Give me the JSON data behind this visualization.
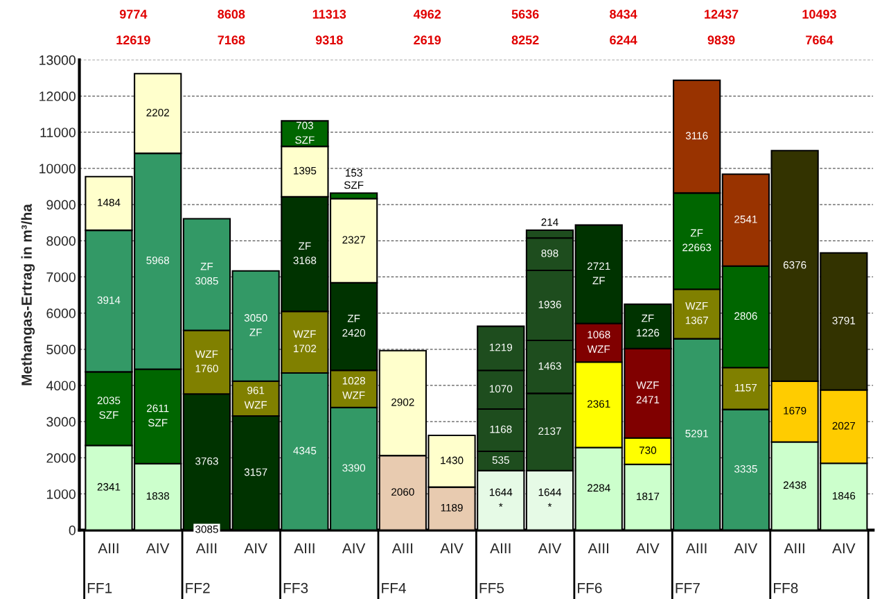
{
  "chart_data": {
    "type": "bar",
    "stacked": true,
    "ylabel": "Methangas-Ertrag in m³/ha",
    "categories": [
      "AIII\nFF1",
      "AIV",
      "AIII\nFF2",
      "AIV",
      "AIII\nFF3",
      "AIV",
      "AIII\nFF4",
      "AIV",
      "AIII\nFF5",
      "AIV",
      "AIII\nFF6",
      "AIV",
      "AIII\nFF7",
      "AIV",
      "AIII\nFF8",
      "AIV"
    ],
    "series": [
      {
        "values": [
          2341,
          1838,
          3763,
          3157,
          4345,
          3390,
          2060,
          1189,
          1644,
          1644,
          2284,
          1817,
          5291,
          3335,
          2438,
          1846
        ],
        "colors": [
          "#ccffcc",
          "#ccffcc",
          "#003300",
          "#003300",
          "#339966",
          "#339966",
          "#e8cbb0",
          "#e8cbb0",
          "#e6fae6",
          "#e6fae6",
          "#ccffcc",
          "#ccffcc",
          "#339966",
          "#339966",
          "#ccffcc",
          "#ccffcc"
        ],
        "value_labels": [
          "2341",
          "1838",
          "3763",
          "3157",
          "4345",
          "3390",
          "2060",
          "1189",
          "1644\n*",
          "1644\n*",
          "2284",
          "1817",
          "5291",
          "3335",
          "2438",
          "1846"
        ]
      },
      {
        "values": [
          2035,
          2611,
          1760,
          961,
          1702,
          1028,
          2902,
          1430,
          535,
          2137,
          2361,
          730,
          1367,
          1157,
          1679,
          2027
        ],
        "colors": [
          "#006600",
          "#006600",
          "#808000",
          "#808000",
          "#808000",
          "#808000",
          "#ffffcc",
          "#ffffcc",
          "#1e4d1e",
          "#1e4d1e",
          "#ffff00",
          "#ffff00",
          "#808000",
          "#808000",
          "#ffcc00",
          "#ffcc00"
        ],
        "value_labels": [
          "2035\nSZF",
          "2611\nSZF",
          "WZF\n1760",
          "961\nWZF",
          "WZF\n1702",
          "1028\nWZF",
          "2902",
          "1430",
          "535",
          "2137",
          "2361",
          "730",
          "WZF\n1367",
          "1157",
          "1679",
          "2027"
        ]
      },
      {
        "values": [
          3914,
          5968,
          3085,
          3050,
          3168,
          2420,
          null,
          null,
          1168,
          1463,
          1068,
          2471,
          2663,
          2806,
          6376,
          3791
        ],
        "colors": [
          "#339966",
          "#339966",
          "#339966",
          "#339966",
          "#003300",
          "#003300",
          null,
          null,
          "#1e4d1e",
          "#1e4d1e",
          "#800000",
          "#800000",
          "#006600",
          "#006600",
          "#333300",
          "#333300"
        ],
        "value_labels": [
          "3914",
          "5968",
          "ZF\n3085",
          "3050\nZF",
          "ZF\n3168",
          "ZF\n2420",
          null,
          null,
          "1168",
          "1463",
          "1068\nWZF",
          "WZF\n2471",
          "ZF\n22663",
          "2806",
          "6376",
          "3791"
        ]
      },
      {
        "values": [
          1484,
          2202,
          null,
          null,
          1395,
          2327,
          null,
          null,
          1070,
          1936,
          2721,
          1226,
          3116,
          2541,
          null,
          null
        ],
        "colors": [
          "#ffffcc",
          "#ffffcc",
          null,
          null,
          "#ffffcc",
          "#ffffcc",
          null,
          null,
          "#1e4d1e",
          "#1e4d1e",
          "#003300",
          "#003300",
          "#993300",
          "#993300",
          null,
          null
        ],
        "value_labels": [
          "1484",
          "2202",
          null,
          null,
          "1395",
          "2327",
          null,
          null,
          "1070",
          "1936",
          "2721\nZF",
          "ZF\n1226",
          "3116",
          "2541",
          null,
          null
        ]
      },
      {
        "values": [
          null,
          null,
          null,
          null,
          703,
          153,
          null,
          null,
          1219,
          898,
          null,
          null,
          null,
          null,
          null,
          null
        ],
        "colors": [
          null,
          null,
          null,
          null,
          "#006600",
          "#006600",
          null,
          null,
          "#1e4d1e",
          "#1e4d1e",
          null,
          null,
          null,
          null,
          null,
          null
        ],
        "value_labels": [
          null,
          null,
          null,
          null,
          "703\nSZF",
          "153\nSZF",
          null,
          null,
          "1219",
          "898",
          null,
          null,
          null,
          null,
          null,
          null
        ]
      },
      {
        "values": [
          null,
          null,
          null,
          null,
          null,
          null,
          null,
          null,
          null,
          214,
          null,
          null,
          null,
          null,
          null,
          null
        ],
        "colors": [
          null,
          null,
          null,
          null,
          null,
          null,
          null,
          null,
          null,
          "#1e4d1e",
          null,
          null,
          null,
          null,
          null,
          null
        ],
        "value_labels": [
          null,
          null,
          null,
          null,
          null,
          null,
          null,
          null,
          null,
          "214",
          null,
          null,
          null,
          null,
          null,
          null
        ]
      }
    ],
    "annotations": [
      "9774",
      "12619",
      "8608",
      "7168",
      "11313",
      "9318",
      "4962",
      "2619",
      "5636",
      "8252",
      "8434",
      "6244",
      "12437",
      "9839",
      "10493",
      "7664",
      {
        "text": "3085",
        "x": "AIII\nFF2",
        "y": 0
      }
    ],
    "ylim": [
      0,
      13000
    ],
    "yticks": [
      0,
      1000,
      2000,
      3000,
      4000,
      5000,
      6000,
      7000,
      8000,
      9000,
      10000,
      11000,
      12000,
      13000
    ],
    "grid": "y",
    "legend": false
  }
}
